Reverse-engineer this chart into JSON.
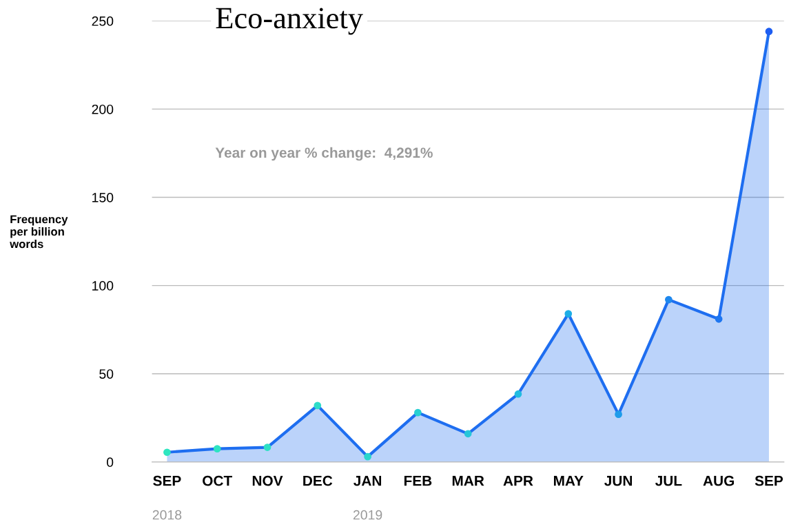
{
  "chart_data": {
    "type": "area",
    "title": "Eco-anxiety",
    "ylabel": "Frequency\nper billion\nwords",
    "categories": [
      "SEP\n2018",
      "OCT",
      "NOV",
      "DEC",
      "JAN\n2019",
      "FEB",
      "MAR",
      "APR",
      "MAY",
      "JUN",
      "JUL",
      "AUG",
      "SEP"
    ],
    "series": [
      {
        "color": "#1e6ef0",
        "values": [
          5.5,
          7.5,
          8.3,
          32,
          3,
          28,
          16,
          38.5,
          84,
          27,
          92,
          81,
          244
        ],
        "colors": [
          "#2ee6c0",
          "#2ee4c2",
          "#2ee0c4",
          "#2edcc8",
          "#2ad6cc",
          "#28d0d2",
          "#26c6d8",
          "#22bce0",
          "#1eaee6",
          "#1e9cea",
          "#1e88ee",
          "#1e76f0",
          "#1e5ef2"
        ]
      }
    ],
    "ylim": [
      0,
      250
    ],
    "yticks": [
      0,
      50,
      100,
      150,
      200,
      250
    ],
    "grid": "y",
    "marker": "circle",
    "line_style": "solid",
    "legend": false,
    "annotations": [
      "Year on year % change:  4,291%"
    ]
  }
}
